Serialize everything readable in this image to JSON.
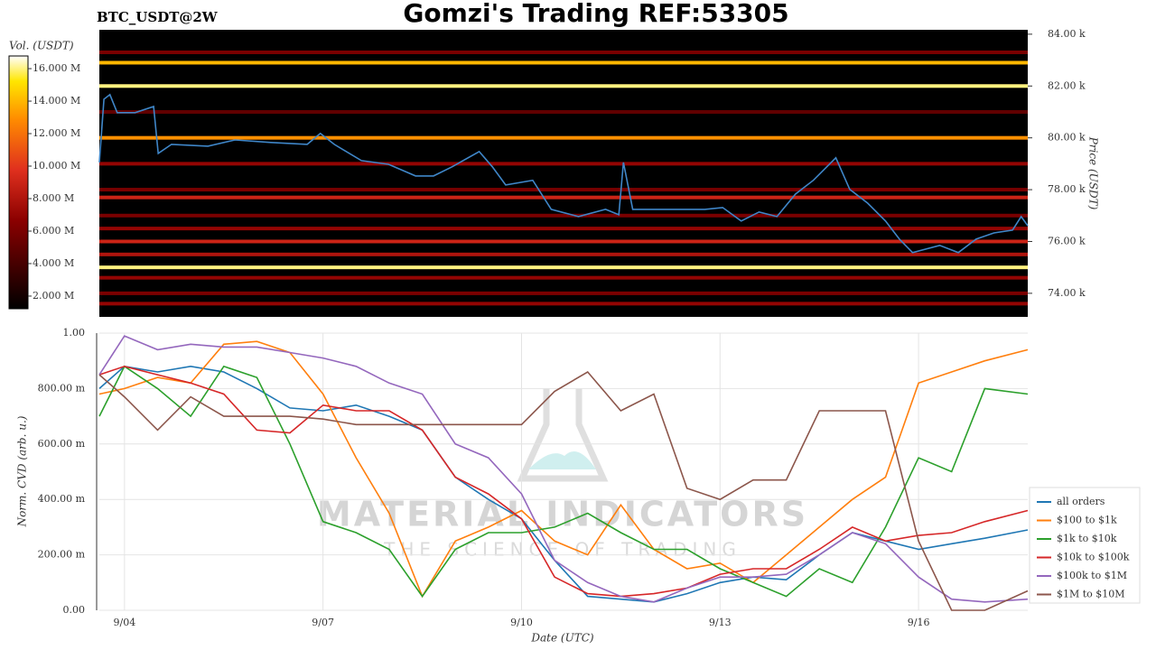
{
  "chart_data": [
    {
      "type": "heatmap",
      "title": "Gomzi's Trading REF:53305",
      "subtitle": "BTC_USDT@2W",
      "ylabel": "Price (USDT)",
      "xlim": [
        3.62,
        17.65
      ],
      "ylim": [
        73090,
        84170
      ],
      "yticks": [
        {
          "value": 74000,
          "label": "74.00 k"
        },
        {
          "value": 76000,
          "label": "76.00 k"
        },
        {
          "value": 78000,
          "label": "78.00 k"
        },
        {
          "value": 80000,
          "label": "80.00 k"
        },
        {
          "value": 82000,
          "label": "82.00 k"
        },
        {
          "value": 84000,
          "label": "84.00 k"
        }
      ],
      "levels": [
        83300,
        82900,
        82000,
        81000,
        80000,
        79000,
        78000,
        77700,
        77000,
        76500,
        76000,
        75500,
        75000,
        74600,
        74000,
        73600
      ],
      "values": [
        6000000,
        14000000,
        16000000,
        5000000,
        13000000,
        7000000,
        6000000,
        9000000,
        6000000,
        7000000,
        9000000,
        8000000,
        16000000,
        7000000,
        6000000,
        7000000
      ],
      "colorbar": {
        "label": "Vol. (USDT)",
        "clim": [
          1220000,
          16780000
        ],
        "ticks": [
          {
            "value": 2000000,
            "label": "2.000 M"
          },
          {
            "value": 4000000,
            "label": "4.000 M"
          },
          {
            "value": 6000000,
            "label": "6.000 M"
          },
          {
            "value": 8000000,
            "label": "8.000 M"
          },
          {
            "value": 10000000,
            "label": "10.000 M"
          },
          {
            "value": 12000000,
            "label": "12.000 M"
          },
          {
            "value": 14000000,
            "label": "14.000 M"
          },
          {
            "value": 16000000,
            "label": "16.000 M"
          }
        ]
      },
      "price": {
        "color": "#3f86c8",
        "x": [
          3.62,
          3.69,
          3.78,
          3.89,
          4.16,
          4.44,
          4.51,
          4.71,
          5.26,
          5.67,
          6.21,
          6.76,
          6.96,
          7.17,
          7.58,
          7.99,
          8.4,
          8.67,
          8.95,
          9.36,
          9.56,
          9.76,
          10.17,
          10.45,
          10.86,
          11.27,
          11.47,
          11.54,
          11.68,
          12.22,
          12.77,
          13.04,
          13.32,
          13.59,
          13.86,
          14.14,
          14.41,
          14.75,
          14.96,
          15.23,
          15.5,
          15.71,
          15.91,
          16.32,
          16.6,
          16.87,
          17.14,
          17.42,
          17.55,
          17.65
        ],
        "values": [
          79050,
          81490,
          81670,
          80970,
          80970,
          81210,
          79400,
          79750,
          79680,
          79920,
          79820,
          79750,
          80170,
          79750,
          79120,
          78980,
          78530,
          78530,
          78880,
          79470,
          78880,
          78180,
          78360,
          77240,
          76960,
          77240,
          77030,
          79050,
          77240,
          77240,
          77240,
          77310,
          76790,
          77140,
          76960,
          77830,
          78360,
          79230,
          78010,
          77480,
          76790,
          76090,
          75570,
          75850,
          75570,
          76090,
          76330,
          76440,
          76960,
          76610
        ]
      }
    },
    {
      "type": "line",
      "xlabel": "Date (UTC)",
      "ylabel": "Norm. CVD (arb. u.)",
      "annotations": [
        "MATERIAL INDICATORS",
        "THE SCIENCE OF TRADING"
      ],
      "xlim": [
        3.62,
        17.65
      ],
      "xticks": [
        {
          "value": 4,
          "label": "9/04"
        },
        {
          "value": 7,
          "label": "9/07"
        },
        {
          "value": 10,
          "label": "9/10"
        },
        {
          "value": 13,
          "label": "9/13"
        },
        {
          "value": 16,
          "label": "9/16"
        }
      ],
      "ylim": [
        0,
        1
      ],
      "yticks": [
        {
          "value": 0,
          "label": "0.00"
        },
        {
          "value": 0.2,
          "label": "200.00 m"
        },
        {
          "value": 0.4,
          "label": "400.00 m"
        },
        {
          "value": 0.6,
          "label": "600.00 m"
        },
        {
          "value": 0.8,
          "label": "800.00 m"
        },
        {
          "value": 1,
          "label": "1.00"
        }
      ],
      "grid": true,
      "legend": "right",
      "x": [
        3.62,
        4,
        4.5,
        5,
        5.5,
        6,
        6.5,
        7,
        7.5,
        8,
        8.5,
        9,
        9.5,
        10,
        10.5,
        11,
        11.5,
        12,
        12.5,
        13,
        13.5,
        14,
        14.5,
        15,
        15.5,
        16,
        16.5,
        17,
        17.65
      ],
      "series": [
        {
          "name": "all orders",
          "color": "#1f77b4",
          "values": [
            0.8,
            0.88,
            0.86,
            0.88,
            0.86,
            0.8,
            0.73,
            0.72,
            0.74,
            0.7,
            0.65,
            0.48,
            0.4,
            0.33,
            0.18,
            0.05,
            0.04,
            0.03,
            0.06,
            0.1,
            0.12,
            0.11,
            0.2,
            0.28,
            0.25,
            0.22,
            0.24,
            0.26,
            0.29
          ]
        },
        {
          "name": "$100 to $1k",
          "color": "#ff7f0e",
          "values": [
            0.78,
            0.8,
            0.84,
            0.82,
            0.96,
            0.97,
            0.93,
            0.78,
            0.55,
            0.35,
            0.05,
            0.25,
            0.3,
            0.36,
            0.25,
            0.2,
            0.38,
            0.22,
            0.15,
            0.17,
            0.1,
            0.2,
            0.3,
            0.4,
            0.48,
            0.82,
            0.86,
            0.9,
            0.94
          ]
        },
        {
          "name": "$1k to $10k",
          "color": "#2ca02c",
          "values": [
            0.7,
            0.88,
            0.8,
            0.7,
            0.88,
            0.84,
            0.6,
            0.32,
            0.28,
            0.22,
            0.05,
            0.22,
            0.28,
            0.28,
            0.3,
            0.35,
            0.28,
            0.22,
            0.22,
            0.15,
            0.1,
            0.05,
            0.15,
            0.1,
            0.3,
            0.55,
            0.5,
            0.8,
            0.78
          ]
        },
        {
          "name": "$10k to $100k",
          "color": "#d62728",
          "values": [
            0.85,
            0.88,
            0.85,
            0.82,
            0.78,
            0.65,
            0.64,
            0.74,
            0.72,
            0.72,
            0.65,
            0.48,
            0.42,
            0.33,
            0.12,
            0.06,
            0.05,
            0.06,
            0.08,
            0.13,
            0.15,
            0.15,
            0.22,
            0.3,
            0.25,
            0.27,
            0.28,
            0.32,
            0.36
          ]
        },
        {
          "name": "$100k to $1M",
          "color": "#9467bd",
          "values": [
            0.85,
            0.99,
            0.94,
            0.96,
            0.95,
            0.95,
            0.93,
            0.91,
            0.88,
            0.82,
            0.78,
            0.6,
            0.55,
            0.42,
            0.18,
            0.1,
            0.05,
            0.03,
            0.08,
            0.12,
            0.12,
            0.13,
            0.2,
            0.28,
            0.24,
            0.12,
            0.04,
            0.03,
            0.04
          ]
        },
        {
          "name": "$1M to $10M",
          "color": "#8c564b",
          "values": [
            0.85,
            0.77,
            0.65,
            0.77,
            0.7,
            0.7,
            0.7,
            0.69,
            0.67,
            0.67,
            0.67,
            0.67,
            0.67,
            0.67,
            0.79,
            0.86,
            0.72,
            0.78,
            0.44,
            0.4,
            0.47,
            0.47,
            0.72,
            0.72,
            0.72,
            0.25,
            0,
            0,
            0.07
          ]
        }
      ]
    }
  ]
}
